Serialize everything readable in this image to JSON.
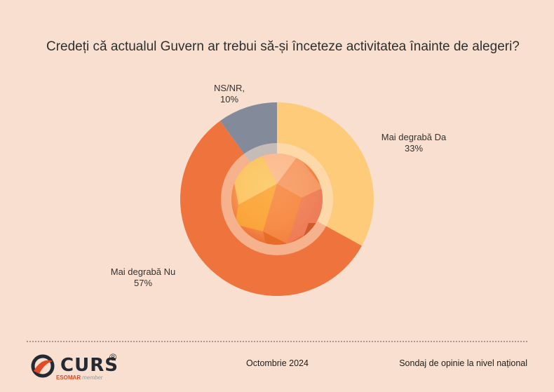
{
  "title": "Credeți că actualul Guvern ar trebui să-și înceteze activitatea înainte de alegeri?",
  "chart_data": {
    "type": "pie",
    "title": "Credeți că actualul Guvern ar trebui să-și înceteze activitatea înainte de alegeri?",
    "slices": [
      {
        "label": "Mai degrabă Da",
        "value_label": "33%",
        "value": 33,
        "color": "#fecb7b"
      },
      {
        "label": "Mai degrabă Nu",
        "value_label": "57%",
        "value": 57,
        "color": "#ef733c"
      },
      {
        "label": "NS/NR,",
        "value_label": "10%",
        "value": 10,
        "color": "#838b9a"
      }
    ],
    "start_angle_deg": 0,
    "direction": "clockwise",
    "style": "donut"
  },
  "footer": {
    "date": "Octombrie 2024",
    "source": "Sondaj de opinie la nivel național"
  },
  "logo": {
    "name": "CURS",
    "registered": "®",
    "sub_brand": "ESOMAR",
    "sub_member": "member"
  },
  "colors": {
    "background": "#f8dfcf",
    "inner_warm": "#fdb064",
    "inner_deep": "#f0823e"
  }
}
